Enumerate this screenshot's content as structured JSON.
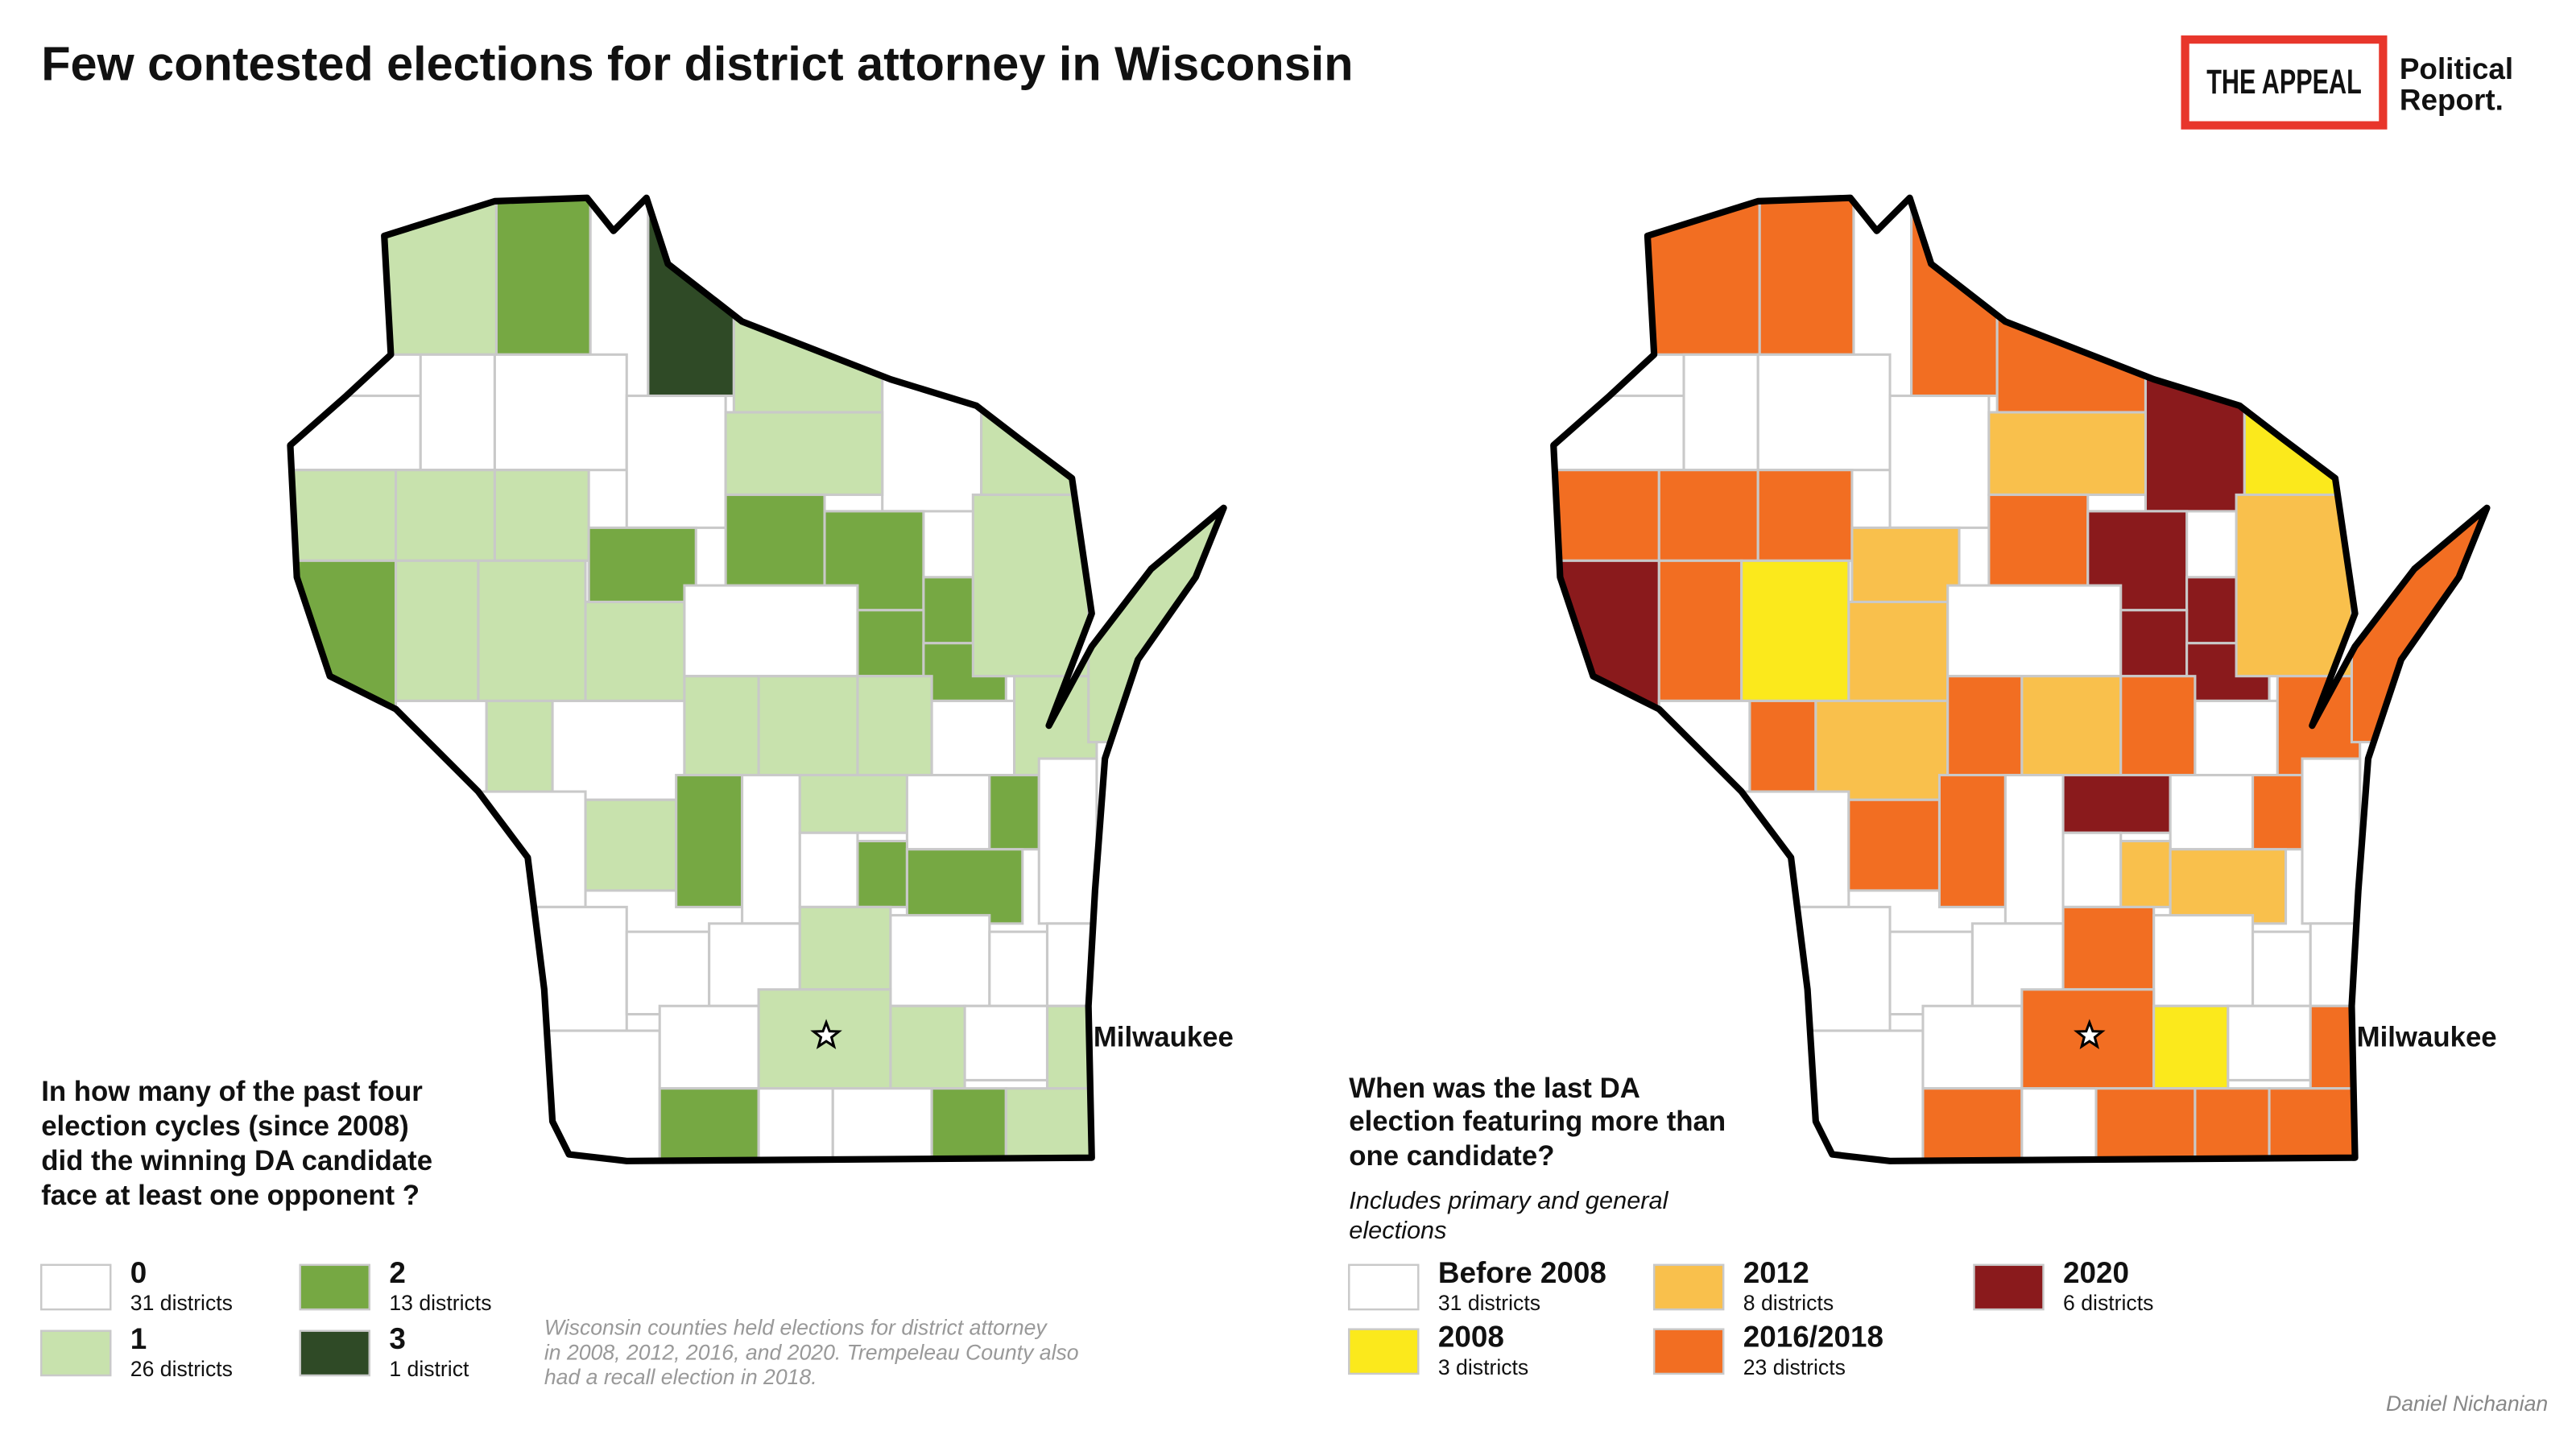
{
  "header": {
    "title": "Few contested elections for district attorney in Wisconsin",
    "logo": {
      "name": "THE APPEAL",
      "sub": [
        "Political",
        "Report."
      ]
    }
  },
  "left_map": {
    "question": [
      "In how many of the past four",
      "election cycles (since 2008)",
      "did the winning DA candidate",
      "face at least one opponent ?"
    ],
    "city": "Milwaukee",
    "legend": [
      {
        "label": "0",
        "count": "31 districts",
        "color": "#ffffff"
      },
      {
        "label": "1",
        "count": "26 districts",
        "color": "#c8e2ad"
      },
      {
        "label": "2",
        "count": "13 districts",
        "color": "#76a843"
      },
      {
        "label": "3",
        "count": "1 district",
        "color": "#2f4a26"
      }
    ],
    "note": [
      "Wisconsin counties held elections for district attorney",
      "in 2008, 2012, 2016, and 2020. Trempeleau County also",
      "had a recall election in 2018."
    ]
  },
  "right_map": {
    "question": [
      "When was the last DA",
      "election featuring more than",
      "one candidate?"
    ],
    "subtitle": [
      "Includes primary and general",
      "elections"
    ],
    "city": "Milwaukee",
    "legend": [
      {
        "label": "Before 2008",
        "count": "31 districts",
        "color": "#ffffff"
      },
      {
        "label": "2008",
        "count": "3 districts",
        "color": "#fbe91c"
      },
      {
        "label": "2012",
        "count": "8 districts",
        "color": "#f9c04c"
      },
      {
        "label": "2016/2018",
        "count": "23 districts",
        "color": "#f26e22"
      },
      {
        "label": "2020",
        "count": "6 districts",
        "color": "#8a1a1c"
      }
    ]
  },
  "credit": "Daniel Nichanian"
}
